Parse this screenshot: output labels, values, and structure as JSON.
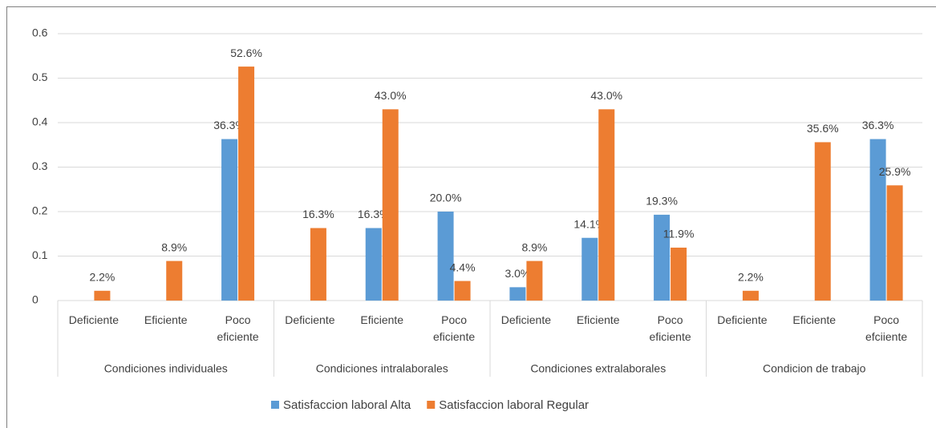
{
  "chart_data": {
    "type": "bar",
    "groups": [
      "Condiciones individuales",
      "Condiciones intralaborales",
      "Condiciones extralaborales",
      "Condicion de trabajo"
    ],
    "categories": [
      "Deficiente",
      "Eficiente",
      "Poco eficiente",
      "Deficiente",
      "Eficiente",
      "Poco eficiente",
      "Deficiente",
      "Eficiente",
      "Poco eficiente",
      "Deficiente",
      "Eficiente",
      "Poco efciiente"
    ],
    "series": [
      {
        "name": "Satisfaccion laboral Alta",
        "color": "#5b9bd5",
        "values": [
          null,
          null,
          0.363,
          null,
          0.163,
          0.2,
          0.03,
          0.141,
          0.193,
          null,
          null,
          0.363
        ],
        "value_labels": [
          null,
          null,
          "36.3%",
          null,
          "16.3%",
          "20.0%",
          "3.0%",
          "14.1%",
          "19.3%",
          null,
          null,
          "36.3%"
        ]
      },
      {
        "name": "Satisfaccion laboral Regular",
        "color": "#ed7d31",
        "values": [
          0.022,
          0.089,
          0.526,
          0.163,
          0.43,
          0.044,
          0.089,
          0.43,
          0.119,
          0.022,
          0.356,
          0.259
        ],
        "value_labels": [
          "2.2%",
          "8.9%",
          "52.6%",
          "16.3%",
          "43.0%",
          "4.4%",
          "8.9%",
          "43.0%",
          "11.9%",
          "2.2%",
          "35.6%",
          "25.9%"
        ]
      }
    ],
    "ylim": [
      0,
      0.6
    ],
    "yticks": [
      0,
      0.1,
      0.2,
      0.3,
      0.4,
      0.5,
      0.6
    ],
    "grid": true,
    "legend": "bottom"
  }
}
